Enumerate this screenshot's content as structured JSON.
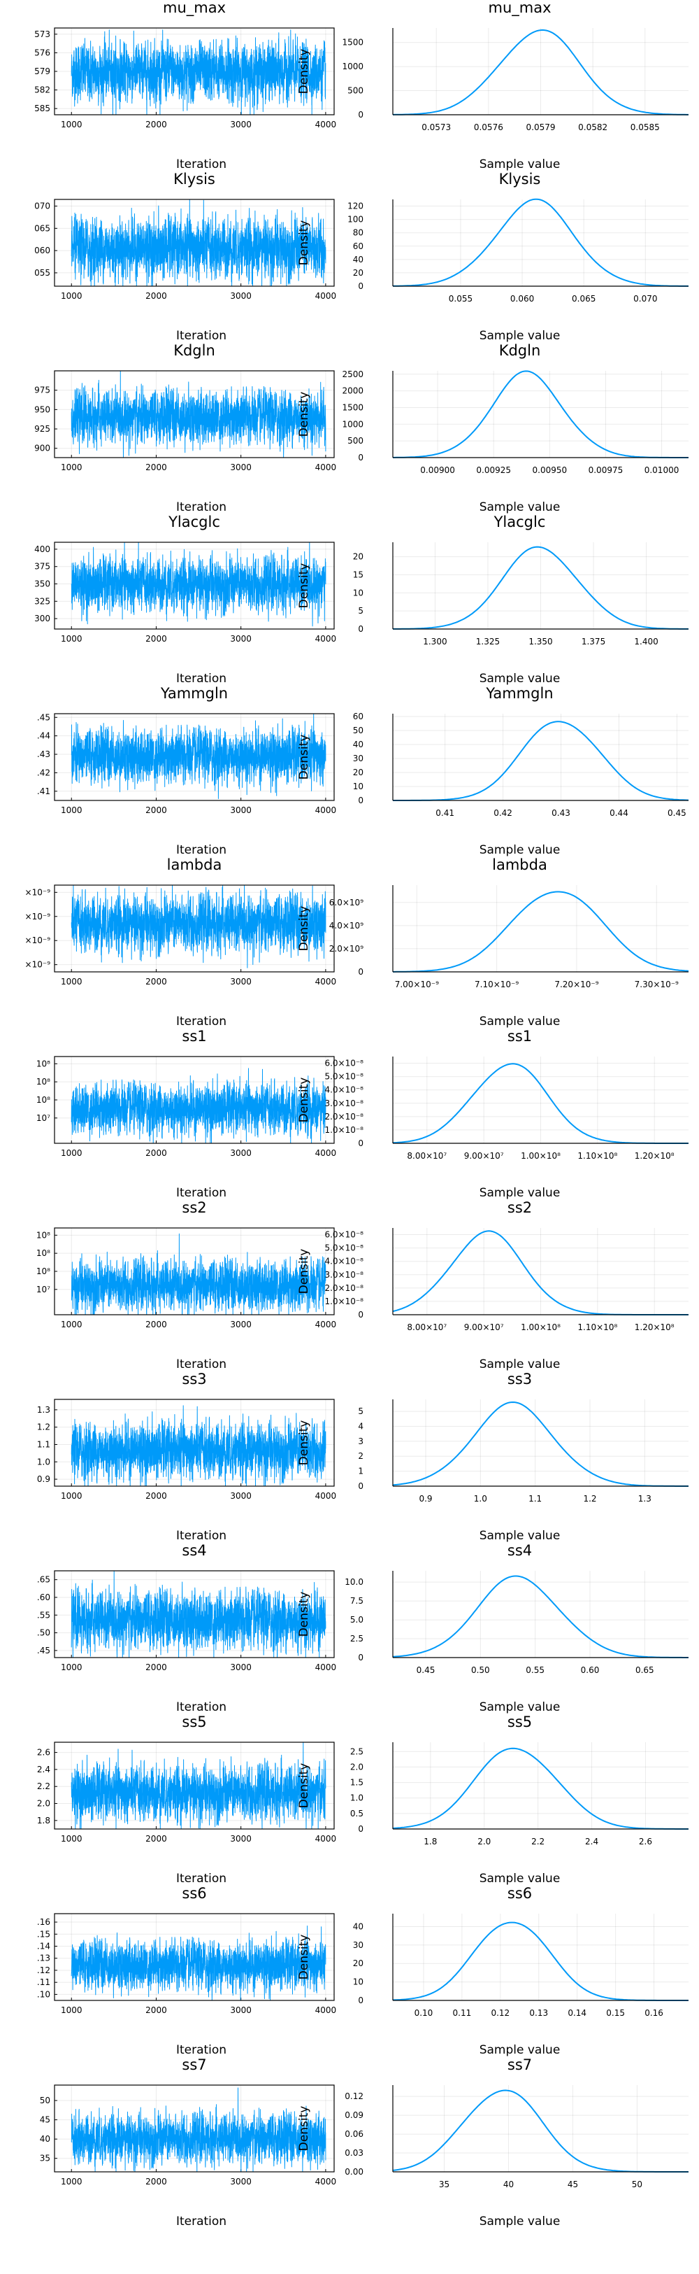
{
  "axis_text": {
    "iteration": "Iteration",
    "sample_value": "Sample value",
    "density": "Density"
  },
  "style": {
    "line_color": "#009af9",
    "background": "#ffffff"
  },
  "chart_data": [
    {
      "parameter": "mu_max",
      "trace": {
        "type": "line",
        "x_range": [
          800,
          4100
        ],
        "x_ticks": [
          "1000",
          "2000",
          "3000",
          "4000"
        ],
        "y_range": [
          0.0572,
          0.0586
        ],
        "center": 0.05789,
        "sd": 0.00022,
        "y_tick_values": [
          0.0573,
          0.0576,
          0.0579,
          0.0582,
          0.0585
        ],
        "y_tick_labels": [
          "0.0573",
          "0.0576",
          "0.0579",
          "0.0582",
          "0.0585"
        ],
        "shown_ticks": [
          "585",
          "582",
          "579",
          "576",
          "573"
        ]
      },
      "density": {
        "type": "line",
        "x_range": [
          0.05705,
          0.05875
        ],
        "x_ticks": [
          0.0573,
          0.0576,
          0.0579,
          0.0582,
          0.0585
        ],
        "x_tick_labels": [
          "0.0573",
          "0.0576",
          "0.0579",
          "0.0582",
          "0.0585"
        ],
        "y_range": [
          0,
          1800
        ],
        "y_ticks": [
          0,
          500,
          1000,
          1500
        ],
        "y_tick_labels": [
          "0",
          "500",
          "1000",
          "1500"
        ],
        "peak_x": 0.05789,
        "peak_y": 1750,
        "sd": 0.00023
      }
    },
    {
      "parameter": "Klysis",
      "trace": {
        "type": "line",
        "x_range": [
          800,
          4100
        ],
        "x_ticks": [
          "1000",
          "2000",
          "3000",
          "4000"
        ],
        "y_range": [
          0.052,
          0.0715
        ],
        "center": 0.0605,
        "sd": 0.0032,
        "shown_ticks": [
          "070",
          "065",
          "060",
          "055"
        ],
        "y_tick_values": [
          0.07,
          0.065,
          0.06,
          0.055
        ]
      },
      "density": {
        "type": "line",
        "x_range": [
          0.0495,
          0.0735
        ],
        "x_ticks": [
          0.055,
          0.06,
          0.065,
          0.07
        ],
        "x_tick_labels": [
          "0.055",
          "0.060",
          "0.065",
          "0.070"
        ],
        "y_range": [
          0,
          130
        ],
        "y_ticks": [
          0,
          20,
          40,
          60,
          80,
          100,
          120
        ],
        "y_tick_labels": [
          "0",
          "20",
          "40",
          "60",
          "80",
          "100",
          "120"
        ],
        "peak_x": 0.061,
        "peak_y": 126,
        "sd": 0.0032
      }
    },
    {
      "parameter": "Kdgln",
      "trace": {
        "type": "line",
        "x_range": [
          800,
          4100
        ],
        "x_ticks": [
          "1000",
          "2000",
          "3000",
          "4000"
        ],
        "y_range": [
          0.00888,
          0.01
        ],
        "center": 0.0094,
        "sd": 0.00016,
        "shown_ticks": [
          "975",
          "950",
          "925",
          "900"
        ],
        "y_tick_values": [
          0.00975,
          0.0095,
          0.00925,
          0.009
        ]
      },
      "density": {
        "type": "line",
        "x_range": [
          0.0088,
          0.01012
        ],
        "x_ticks": [
          0.009,
          0.00925,
          0.0095,
          0.00975,
          0.01
        ],
        "x_tick_labels": [
          "0.00900",
          "0.00925",
          "0.00950",
          "0.00975",
          "0.01000"
        ],
        "y_range": [
          0,
          2600
        ],
        "y_ticks": [
          0,
          500,
          1000,
          1500,
          2000,
          2500
        ],
        "y_tick_labels": [
          "0",
          "500",
          "1000",
          "1500",
          "2000",
          "2500"
        ],
        "peak_x": 0.0094,
        "peak_y": 2500,
        "sd": 0.00016
      }
    },
    {
      "parameter": "Ylacglc",
      "trace": {
        "type": "line",
        "x_range": [
          800,
          4100
        ],
        "x_ticks": [
          "1000",
          "2000",
          "3000",
          "4000"
        ],
        "y_range": [
          1.285,
          1.41
        ],
        "center": 1.349,
        "sd": 0.018,
        "shown_ticks": [
          "400",
          "375",
          "350",
          "325",
          "300"
        ],
        "y_tick_values": [
          1.4,
          1.375,
          1.35,
          1.325,
          1.3
        ]
      },
      "density": {
        "type": "line",
        "x_range": [
          1.28,
          1.42
        ],
        "x_ticks": [
          1.3,
          1.325,
          1.35,
          1.375,
          1.4
        ],
        "x_tick_labels": [
          "1.300",
          "1.325",
          "1.350",
          "1.375",
          "1.400"
        ],
        "y_range": [
          0,
          24
        ],
        "y_ticks": [
          0,
          5,
          10,
          15,
          20
        ],
        "y_tick_labels": [
          "0",
          "5",
          "10",
          "15",
          "20"
        ],
        "peak_x": 1.35,
        "peak_y": 22.5,
        "sd": 0.018
      }
    },
    {
      "parameter": "Yammgln",
      "trace": {
        "type": "line",
        "x_range": [
          800,
          4100
        ],
        "x_ticks": [
          "1000",
          "2000",
          "3000",
          "4000"
        ],
        "y_range": [
          0.405,
          0.452
        ],
        "center": 0.429,
        "sd": 0.0068,
        "shown_ticks": [
          ".45",
          ".44",
          ".43",
          ".42",
          ".41"
        ],
        "y_tick_values": [
          0.45,
          0.44,
          0.43,
          0.42,
          0.41
        ]
      },
      "density": {
        "type": "line",
        "x_range": [
          0.401,
          0.452
        ],
        "x_ticks": [
          0.41,
          0.42,
          0.43,
          0.44,
          0.45
        ],
        "x_tick_labels": [
          "0.41",
          "0.42",
          "0.43",
          "0.44",
          "0.45"
        ],
        "y_range": [
          0,
          62
        ],
        "y_ticks": [
          0,
          10,
          20,
          30,
          40,
          50,
          60
        ],
        "y_tick_labels": [
          "0",
          "10",
          "20",
          "30",
          "40",
          "50",
          "60"
        ],
        "peak_x": 0.43,
        "peak_y": 58,
        "sd": 0.0066
      }
    },
    {
      "parameter": "lambda",
      "trace": {
        "type": "line",
        "x_range": [
          800,
          4100
        ],
        "x_ticks": [
          "1000",
          "2000",
          "3000",
          "4000"
        ],
        "y_range": [
          6.97e-09,
          7.33e-09
        ],
        "center": 7.17e-09,
        "sd": 5.5e-11,
        "shown_ticks": [
          "×10⁻⁹",
          "×10⁻⁹",
          "×10⁻⁹",
          "×10⁻⁹"
        ],
        "y_tick_values": [
          7.3e-09,
          7.2e-09,
          7.1e-09,
          7e-09
        ]
      },
      "density": {
        "type": "line",
        "x_range": [
          6.97e-09,
          7.34e-09
        ],
        "x_ticks": [
          7e-09,
          7.1e-09,
          7.2e-09,
          7.3e-09
        ],
        "x_tick_labels": [
          "7.00×10⁻⁹",
          "7.10×10⁻⁹",
          "7.20×10⁻⁹",
          "7.30×10⁻⁹"
        ],
        "y_range": [
          0,
          7500000000.0
        ],
        "y_ticks": [
          0,
          2000000000.0,
          4000000000.0,
          6000000000.0
        ],
        "y_tick_labels": [
          "0",
          "2.0×10⁹",
          "4.0×10⁹",
          "6.0×10⁹"
        ],
        "peak_x": 7.175e-09,
        "peak_y": 7200000000.0,
        "sd": 5.5e-11
      }
    },
    {
      "parameter": "ss1",
      "trace": {
        "type": "line",
        "x_range": [
          800,
          4100
        ],
        "x_ticks": [
          "1000",
          "2000",
          "3000",
          "4000"
        ],
        "y_range": [
          76000000.0,
          124000000.0
        ],
        "center": 95000000.0,
        "sd": 6500000.0,
        "shown_ticks": [
          "10⁸",
          "10⁸",
          "10⁸",
          "10⁷"
        ],
        "y_tick_values": [
          120000000.0,
          110000000.0,
          100000000.0,
          90000000.0
        ]
      },
      "density": {
        "type": "line",
        "x_range": [
          74000000.0,
          126000000.0
        ],
        "x_ticks": [
          80000000.0,
          90000000.0,
          100000000.0,
          110000000.0,
          120000000.0
        ],
        "x_tick_labels": [
          "8.00×10⁷",
          "9.00×10⁷",
          "1.00×10⁸",
          "1.10×10⁸",
          "1.20×10⁸"
        ],
        "y_range": [
          0,
          6.5e-08
        ],
        "y_ticks": [
          0,
          1e-08,
          2e-08,
          3e-08,
          4e-08,
          5e-08,
          6e-08
        ],
        "y_tick_labels": [
          "0",
          "1.0×10⁻⁸",
          "2.0×10⁻⁸",
          "3.0×10⁻⁸",
          "4.0×10⁻⁸",
          "5.0×10⁻⁸",
          "6.0×10⁻⁸"
        ],
        "peak_x": 94500000.0,
        "peak_y": 6e-08,
        "sd": 6500000.0
      }
    },
    {
      "parameter": "ss2",
      "trace": {
        "type": "line",
        "x_range": [
          800,
          4100
        ],
        "x_ticks": [
          "1000",
          "2000",
          "3000",
          "4000"
        ],
        "y_range": [
          76000000.0,
          124000000.0
        ],
        "center": 92000000.0,
        "sd": 6500000.0,
        "shown_ticks": [
          "10⁸",
          "10⁸",
          "10⁸",
          "10⁷"
        ],
        "y_tick_values": [
          120000000.0,
          110000000.0,
          100000000.0,
          90000000.0
        ]
      },
      "density": {
        "type": "line",
        "x_range": [
          74000000.0,
          126000000.0
        ],
        "x_ticks": [
          80000000.0,
          90000000.0,
          100000000.0,
          110000000.0,
          120000000.0
        ],
        "x_tick_labels": [
          "8.00×10⁷",
          "9.00×10⁷",
          "1.00×10⁸",
          "1.10×10⁸",
          "1.20×10⁸"
        ],
        "y_range": [
          0,
          6.5e-08
        ],
        "y_ticks": [
          0,
          1e-08,
          2e-08,
          3e-08,
          4e-08,
          5e-08,
          6e-08
        ],
        "y_tick_labels": [
          "0",
          "1.0×10⁻⁸",
          "2.0×10⁻⁸",
          "3.0×10⁻⁸",
          "4.0×10⁻⁸",
          "5.0×10⁻⁸",
          "6.0×10⁻⁸"
        ],
        "peak_x": 90500000.0,
        "peak_y": 6.1e-08,
        "sd": 6500000.0
      }
    },
    {
      "parameter": "ss3",
      "trace": {
        "type": "line",
        "x_range": [
          800,
          4100
        ],
        "x_ticks": [
          "1000",
          "2000",
          "3000",
          "4000"
        ],
        "y_range": [
          0.86,
          1.36
        ],
        "center": 1.065,
        "sd": 0.075,
        "shown_ticks": [
          "1.3",
          "1.2",
          "1.1",
          "1.0",
          "0.9"
        ],
        "y_tick_values": [
          1.3,
          1.2,
          1.1,
          1.0,
          0.9
        ]
      },
      "density": {
        "type": "line",
        "x_range": [
          0.84,
          1.38
        ],
        "x_ticks": [
          0.9,
          1.0,
          1.1,
          1.2,
          1.3
        ],
        "x_tick_labels": [
          "0.9",
          "1.0",
          "1.1",
          "1.2",
          "1.3"
        ],
        "y_range": [
          0,
          5.8
        ],
        "y_ticks": [
          0,
          1,
          2,
          3,
          4,
          5
        ],
        "y_tick_labels": [
          "0",
          "1",
          "2",
          "3",
          "4",
          "5"
        ],
        "peak_x": 1.06,
        "peak_y": 5.4,
        "sd": 0.075
      }
    },
    {
      "parameter": "ss4",
      "trace": {
        "type": "line",
        "x_range": [
          800,
          4100
        ],
        "x_ticks": [
          "1000",
          "2000",
          "3000",
          "4000"
        ],
        "y_range": [
          0.43,
          0.675
        ],
        "center": 0.535,
        "sd": 0.038,
        "shown_ticks": [
          ".65",
          ".60",
          ".55",
          ".50",
          ".45"
        ],
        "y_tick_values": [
          0.65,
          0.6,
          0.55,
          0.5,
          0.45
        ]
      },
      "density": {
        "type": "line",
        "x_range": [
          0.42,
          0.69
        ],
        "x_ticks": [
          0.45,
          0.5,
          0.55,
          0.6,
          0.65
        ],
        "x_tick_labels": [
          "0.45",
          "0.50",
          "0.55",
          "0.60",
          "0.65"
        ],
        "y_range": [
          0,
          11.5
        ],
        "y_ticks": [
          0,
          2.5,
          5.0,
          7.5,
          10.0
        ],
        "y_tick_labels": [
          "0",
          "2.5",
          "5.0",
          "7.5",
          "10.0"
        ],
        "peak_x": 0.535,
        "peak_y": 10.6,
        "sd": 0.038
      }
    },
    {
      "parameter": "ss5",
      "trace": {
        "type": "line",
        "x_range": [
          800,
          4100
        ],
        "x_ticks": [
          "1000",
          "2000",
          "3000",
          "4000"
        ],
        "y_range": [
          1.7,
          2.72
        ],
        "center": 2.12,
        "sd": 0.15,
        "shown_ticks": [
          "2.6",
          "2.4",
          "2.2",
          "2.0",
          "1.8"
        ],
        "y_tick_values": [
          2.6,
          2.4,
          2.2,
          2.0,
          1.8
        ]
      },
      "density": {
        "type": "line",
        "x_range": [
          1.66,
          2.76
        ],
        "x_ticks": [
          1.8,
          2.0,
          2.2,
          2.4,
          2.6
        ],
        "x_tick_labels": [
          "1.8",
          "2.0",
          "2.2",
          "2.4",
          "2.6"
        ],
        "y_range": [
          0,
          2.8
        ],
        "y_ticks": [
          0,
          0.5,
          1.0,
          1.5,
          2.0,
          2.5
        ],
        "y_tick_labels": [
          "0",
          "0.5",
          "1.0",
          "1.5",
          "2.0",
          "2.5"
        ],
        "peak_x": 2.12,
        "peak_y": 2.65,
        "sd": 0.15
      }
    },
    {
      "parameter": "ss6",
      "trace": {
        "type": "line",
        "x_range": [
          800,
          4100
        ],
        "x_ticks": [
          "1000",
          "2000",
          "3000",
          "4000"
        ],
        "y_range": [
          0.095,
          0.167
        ],
        "center": 0.124,
        "sd": 0.0095,
        "shown_ticks": [
          ".16",
          ".15",
          ".14",
          ".13",
          ".12",
          ".11",
          ".10"
        ],
        "y_tick_values": [
          0.16,
          0.15,
          0.14,
          0.13,
          0.12,
          0.11,
          0.1
        ]
      },
      "density": {
        "type": "line",
        "x_range": [
          0.092,
          0.169
        ],
        "x_ticks": [
          0.1,
          0.11,
          0.12,
          0.13,
          0.14,
          0.15,
          0.16
        ],
        "x_tick_labels": [
          "0.10",
          "0.11",
          "0.12",
          "0.13",
          "0.14",
          "0.15",
          "0.16"
        ],
        "y_range": [
          0,
          47
        ],
        "y_ticks": [
          0,
          10,
          20,
          30,
          40
        ],
        "y_tick_labels": [
          "0",
          "10",
          "20",
          "30",
          "40"
        ],
        "peak_x": 0.123,
        "peak_y": 44,
        "sd": 0.0095
      }
    },
    {
      "parameter": "ss7",
      "trace": {
        "type": "line",
        "x_range": [
          800,
          4100
        ],
        "x_ticks": [
          "1000",
          "2000",
          "3000",
          "4000"
        ],
        "y_range": [
          31.5,
          54
        ],
        "center": 40,
        "sd": 3.0,
        "shown_ticks": [
          "50",
          "45",
          "40",
          "35"
        ],
        "y_tick_values": [
          50,
          45,
          40,
          35
        ]
      },
      "density": {
        "type": "line",
        "x_range": [
          31,
          54
        ],
        "x_ticks": [
          35,
          40,
          45,
          50
        ],
        "x_tick_labels": [
          "35",
          "40",
          "45",
          "50"
        ],
        "y_range": [
          0,
          0.138
        ],
        "y_ticks": [
          0,
          0.03,
          0.06,
          0.09,
          0.12
        ],
        "y_tick_labels": [
          "0.00",
          "0.03",
          "0.06",
          "0.09",
          "0.12"
        ],
        "peak_x": 39.5,
        "peak_y": 0.132,
        "sd": 3.0
      }
    }
  ]
}
